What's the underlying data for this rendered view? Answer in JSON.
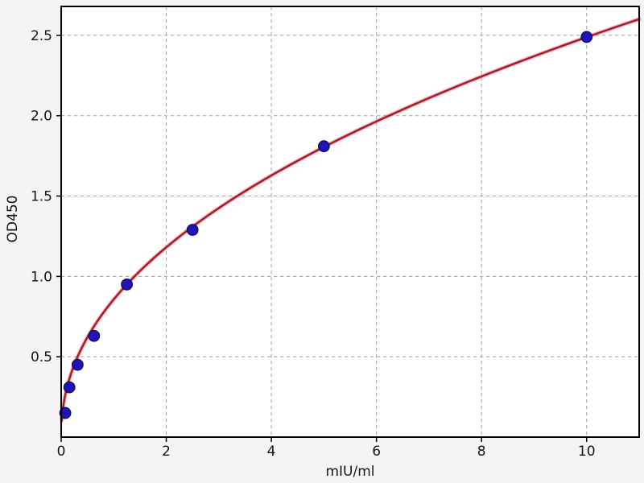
{
  "chart_data": {
    "type": "scatter",
    "title": "",
    "xlabel": "mIU/ml",
    "ylabel": "OD450",
    "xlim": [
      0,
      11
    ],
    "ylim": [
      0,
      2.68
    ],
    "grid": true,
    "legend": "none",
    "x_ticks": [
      0,
      2,
      4,
      6,
      8,
      10
    ],
    "x_tick_labels": [
      "0",
      "2",
      "4",
      "6",
      "8",
      "10"
    ],
    "y_ticks": [
      0.5,
      1.0,
      1.5,
      2.0,
      2.5
    ],
    "y_tick_labels": [
      "0.5",
      "1.0",
      "1.5",
      "2.0",
      "2.5"
    ],
    "series": [
      {
        "name": "standard-points",
        "type": "scatter",
        "x": [
          0.078,
          0.156,
          0.3125,
          0.625,
          1.25,
          2.5,
          5,
          10
        ],
        "y": [
          0.15,
          0.31,
          0.45,
          0.63,
          0.95,
          1.29,
          1.81,
          2.49
        ]
      },
      {
        "name": "fit-curve",
        "type": "line",
        "model": "power",
        "equation": "y = a * x^b",
        "a": 0.857,
        "b": 0.463,
        "x_range": [
          0.01,
          11
        ]
      }
    ],
    "colors": {
      "figure_background": "#f4f4f2",
      "plot_background": "#ffffff",
      "spine": "#000000",
      "grid": "#a3a3a3",
      "tick_text": "#151515",
      "curve": "#a81c2c",
      "curve_halo": "rgba(214,106,116,0.35)",
      "point_fill": "#2114b4",
      "point_edge": "#0d0a5e"
    }
  }
}
